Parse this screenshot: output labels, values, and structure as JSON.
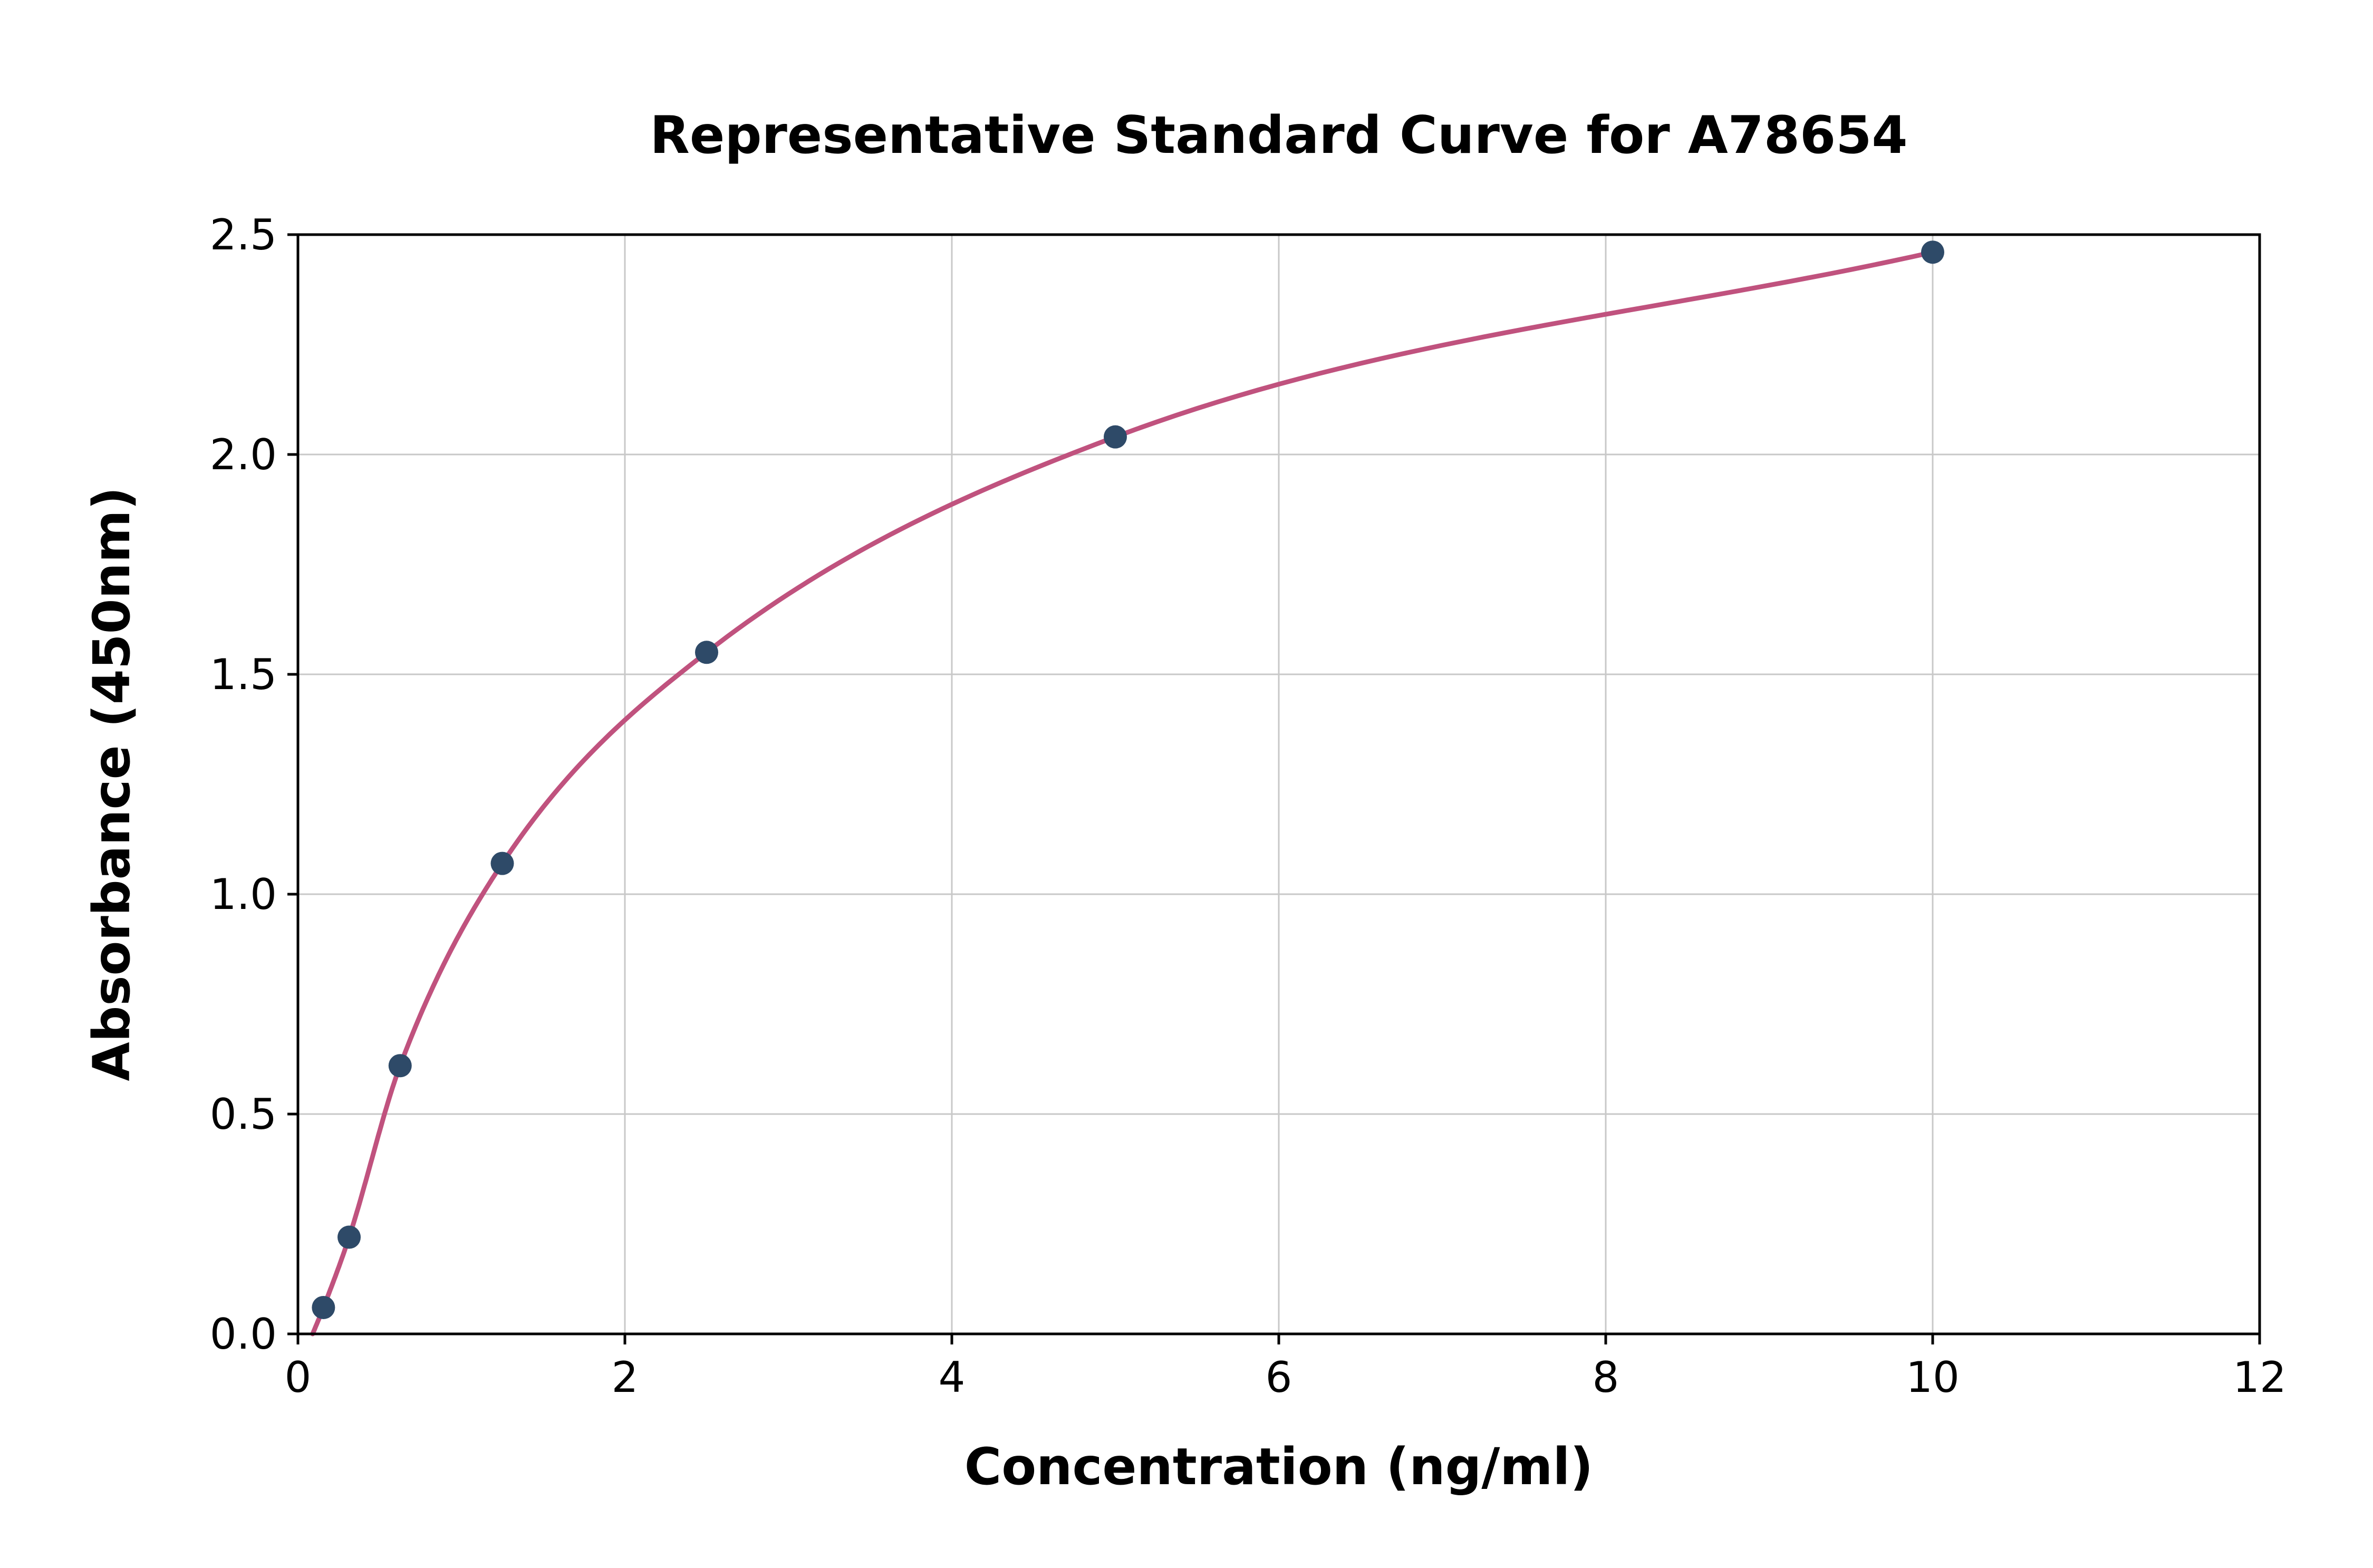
{
  "chart_data": {
    "type": "scatter",
    "title": "Representative Standard Curve for A78654",
    "xlabel": "Concentration (ng/ml)",
    "ylabel": "Absorbance (450nm)",
    "xlim": [
      0,
      12
    ],
    "ylim": [
      0,
      2.5
    ],
    "xticks": [
      "0",
      "2",
      "4",
      "6",
      "8",
      "10",
      "12"
    ],
    "yticks": [
      "0.0",
      "0.5",
      "1.0",
      "1.5",
      "2.0",
      "2.5"
    ],
    "grid": true,
    "legend": "none",
    "x": [
      0.156,
      0.313,
      0.625,
      1.25,
      2.5,
      5,
      10
    ],
    "y": [
      0.06,
      0.22,
      0.61,
      1.07,
      1.55,
      2.04,
      2.46
    ],
    "curve_start": {
      "x": 0.09,
      "y": 0.0
    },
    "colors": {
      "curve": "#c0527e",
      "point": "#2e4a68",
      "grid": "#c8c8c8",
      "axis": "#000000",
      "background": "#ffffff"
    }
  }
}
